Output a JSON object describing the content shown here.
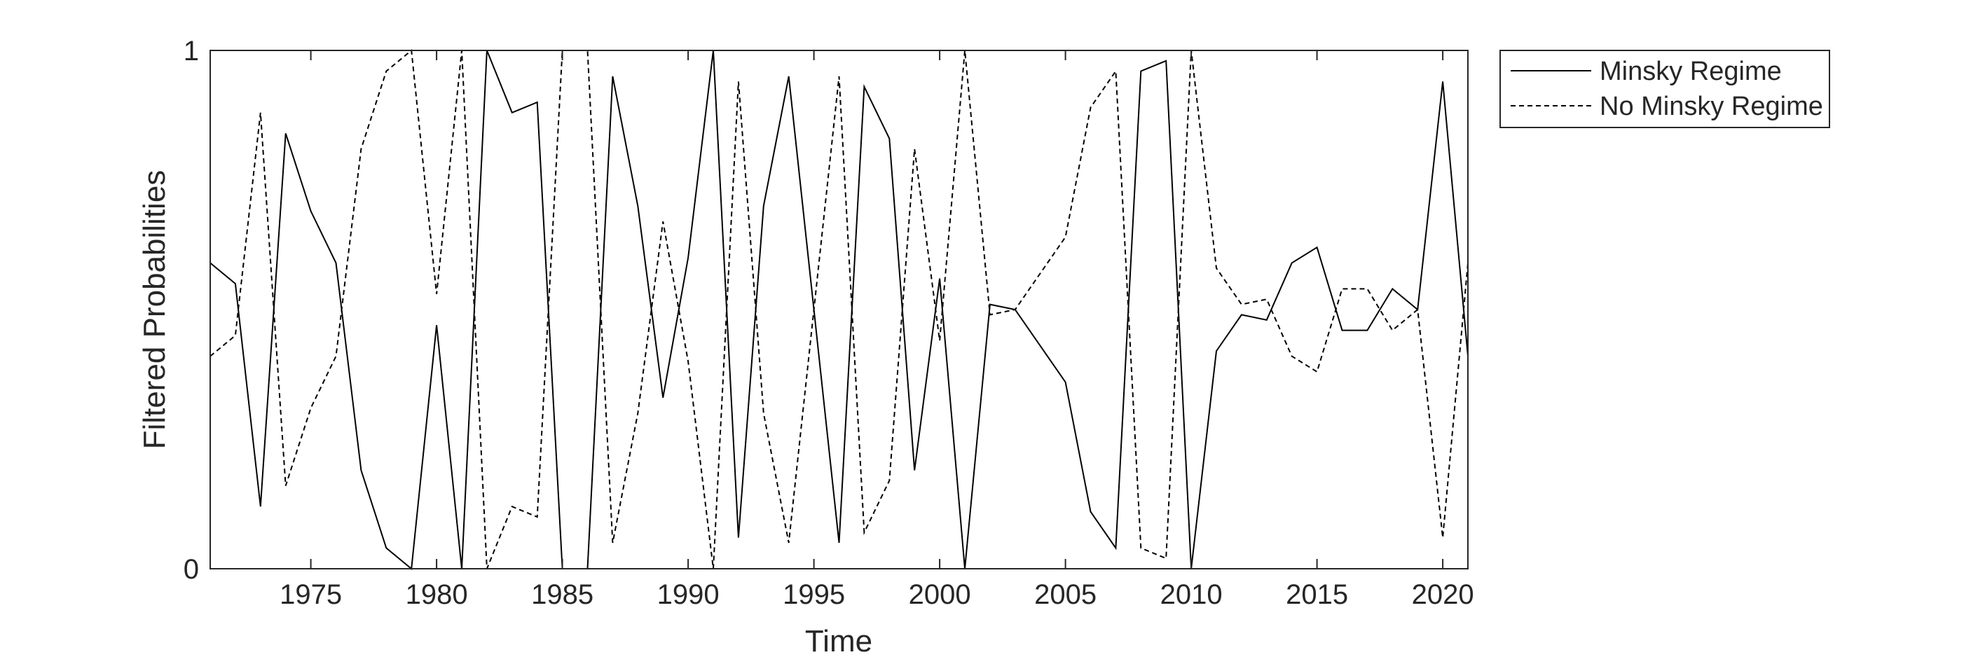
{
  "chart_data": {
    "type": "line",
    "title": "",
    "xlabel": "Time",
    "ylabel": "Filtered Probabilities",
    "xlim": [
      1971,
      2021
    ],
    "ylim": [
      0,
      1
    ],
    "xticks": [
      1975,
      1980,
      1985,
      1990,
      1995,
      2000,
      2005,
      2010,
      2015,
      2020
    ],
    "yticks": [
      0,
      1
    ],
    "xtick_labels": [
      "1975",
      "1980",
      "1985",
      "1990",
      "1995",
      "2000",
      "2005",
      "2010",
      "2015",
      "2020"
    ],
    "ytick_labels": [
      "0",
      "1"
    ],
    "grid": false,
    "legend_position": "outside-top-right",
    "x": [
      1971,
      1972,
      1973,
      1974,
      1975,
      1976,
      1977,
      1978,
      1979,
      1980,
      1981,
      1982,
      1983,
      1984,
      1985,
      1986,
      1987,
      1988,
      1989,
      1990,
      1991,
      1992,
      1993,
      1994,
      1995,
      1996,
      1997,
      1998,
      1999,
      2000,
      2001,
      2002,
      2003,
      2004,
      2005,
      2006,
      2007,
      2008,
      2009,
      2010,
      2011,
      2012,
      2013,
      2014,
      2015,
      2016,
      2017,
      2018,
      2019,
      2020,
      2021
    ],
    "series": [
      {
        "name": "Minsky Regime",
        "style": "solid",
        "color": "#000000",
        "values": [
          0.59,
          0.55,
          0.12,
          0.84,
          0.69,
          0.59,
          0.19,
          0.04,
          0.0,
          0.47,
          0.0,
          1.0,
          0.88,
          0.9,
          0.0,
          0.0,
          0.95,
          0.7,
          0.33,
          0.6,
          1.0,
          0.06,
          0.7,
          0.95,
          0.5,
          0.05,
          0.93,
          0.83,
          0.19,
          0.56,
          0.0,
          0.51,
          0.5,
          0.43,
          0.36,
          0.11,
          0.04,
          0.96,
          0.98,
          0.0,
          0.42,
          0.49,
          0.48,
          0.59,
          0.62,
          0.46,
          0.46,
          0.54,
          0.5,
          0.94,
          0.41
        ]
      },
      {
        "name": "No Minsky Regime",
        "style": "dashed",
        "color": "#000000",
        "values": [
          0.41,
          0.45,
          0.88,
          0.16,
          0.31,
          0.41,
          0.81,
          0.96,
          1.0,
          0.53,
          1.0,
          0.0,
          0.12,
          0.1,
          1.0,
          1.0,
          0.05,
          0.3,
          0.67,
          0.4,
          0.0,
          0.94,
          0.3,
          0.05,
          0.5,
          0.95,
          0.07,
          0.17,
          0.81,
          0.44,
          1.0,
          0.49,
          0.5,
          0.57,
          0.64,
          0.89,
          0.96,
          0.04,
          0.02,
          1.0,
          0.58,
          0.51,
          0.52,
          0.41,
          0.38,
          0.54,
          0.54,
          0.46,
          0.5,
          0.06,
          0.59
        ]
      }
    ]
  }
}
